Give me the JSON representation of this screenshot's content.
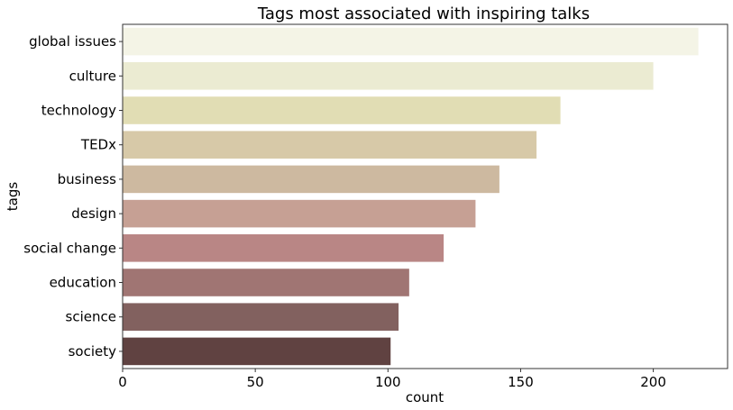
{
  "chart_data": {
    "type": "bar",
    "orientation": "horizontal",
    "title": "Tags most associated with inspiring talks",
    "xlabel": "count",
    "ylabel": "tags",
    "xlim": [
      0,
      228
    ],
    "xticks": [
      0,
      50,
      100,
      150,
      200
    ],
    "grid": false,
    "categories": [
      "global issues",
      "culture",
      "technology",
      "TEDx",
      "business",
      "design",
      "social change",
      "education",
      "science",
      "society"
    ],
    "values": [
      217,
      200,
      165,
      156,
      142,
      133,
      121,
      108,
      104,
      101
    ],
    "colors": [
      "#f4f4e6",
      "#ebebd2",
      "#e1ddb4",
      "#d7c9a8",
      "#cdb9a0",
      "#c6a094",
      "#b98685",
      "#a07573",
      "#82615f",
      "#604241"
    ]
  }
}
